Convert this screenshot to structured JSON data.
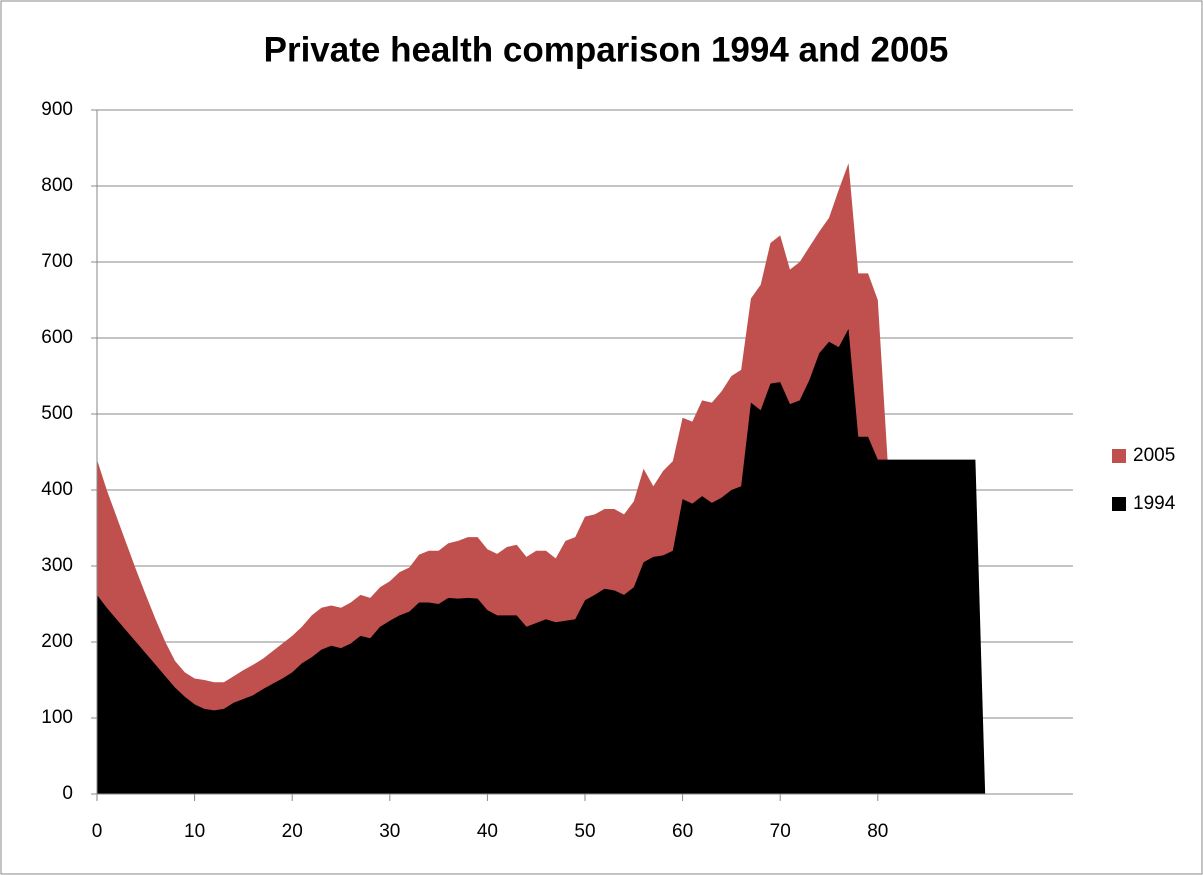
{
  "chart_data": {
    "type": "area",
    "title": "Private health comparison 1994 and 2005",
    "x": [
      0,
      1,
      2,
      3,
      4,
      5,
      6,
      7,
      8,
      9,
      10,
      11,
      12,
      13,
      14,
      15,
      16,
      17,
      18,
      19,
      20,
      21,
      22,
      23,
      24,
      25,
      26,
      27,
      28,
      29,
      30,
      31,
      32,
      33,
      34,
      35,
      36,
      37,
      38,
      39,
      40,
      41,
      42,
      43,
      44,
      45,
      46,
      47,
      48,
      49,
      50,
      51,
      52,
      53,
      54,
      55,
      56,
      57,
      58,
      59,
      60,
      61,
      62,
      63,
      64,
      65,
      66,
      67,
      68,
      69,
      70,
      71,
      72,
      73,
      74,
      75,
      76,
      77,
      78,
      79,
      80,
      81,
      82,
      83,
      84,
      85,
      86,
      87,
      88,
      89,
      90,
      91
    ],
    "series": [
      {
        "name": "2005",
        "color": "#c0504d",
        "values": [
          440,
          400,
          365,
          330,
          295,
          262,
          230,
          200,
          175,
          160,
          152,
          150,
          147,
          147,
          155,
          163,
          170,
          178,
          188,
          198,
          208,
          220,
          235,
          245,
          248,
          245,
          252,
          262,
          258,
          272,
          280,
          292,
          298,
          315,
          320,
          320,
          330,
          333,
          338,
          338,
          322,
          316,
          325,
          328,
          312,
          320,
          320,
          310,
          333,
          338,
          365,
          368,
          375,
          375,
          368,
          385,
          428,
          405,
          425,
          438,
          495,
          490,
          518,
          515,
          530,
          550,
          558,
          652,
          670,
          725,
          735,
          690,
          700,
          720,
          740,
          758,
          795,
          830,
          685,
          685,
          650,
          440,
          null,
          null,
          null,
          null,
          null,
          null,
          null,
          null,
          null,
          null
        ]
      },
      {
        "name": "1994",
        "color": "#000000",
        "values": [
          262,
          245,
          230,
          215,
          200,
          185,
          170,
          155,
          140,
          128,
          118,
          112,
          110,
          112,
          120,
          125,
          130,
          138,
          145,
          152,
          160,
          172,
          180,
          190,
          195,
          192,
          198,
          208,
          205,
          220,
          228,
          235,
          240,
          252,
          252,
          250,
          258,
          257,
          258,
          257,
          242,
          235,
          235,
          235,
          220,
          225,
          230,
          226,
          228,
          230,
          255,
          262,
          270,
          268,
          262,
          272,
          305,
          312,
          314,
          320,
          388,
          382,
          392,
          383,
          390,
          400,
          405,
          515,
          505,
          540,
          542,
          513,
          518,
          545,
          580,
          595,
          588,
          612,
          470,
          470,
          440,
          440,
          440,
          440,
          440,
          440,
          440,
          440,
          440,
          440,
          440,
          0
        ]
      }
    ],
    "xlim": [
      0,
      100
    ],
    "xticks": [
      0,
      10,
      20,
      30,
      40,
      50,
      60,
      70,
      80
    ],
    "ylim": [
      0,
      900
    ],
    "yticks": [
      0,
      100,
      200,
      300,
      400,
      500,
      600,
      700,
      800,
      900
    ],
    "grid": true,
    "legend": "right"
  }
}
